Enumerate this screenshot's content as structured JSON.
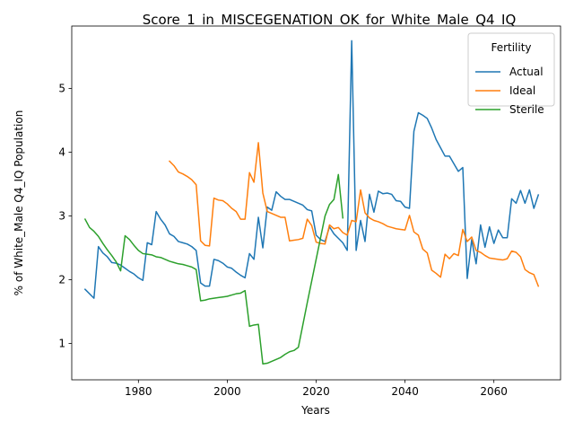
{
  "chart_data": {
    "type": "line",
    "title": "Score_1_in_MISCEGENATION_OK_for_White_Male_Q4_IQ",
    "xlabel": "Years",
    "ylabel": "% of White_Male Q4_IQ Population",
    "xlim": [
      1965,
      2075
    ],
    "ylim": [
      0.43,
      5.98
    ],
    "xticks": [
      1980,
      2000,
      2020,
      2040,
      2060
    ],
    "yticks": [
      1,
      2,
      3,
      4,
      5
    ],
    "grid": false,
    "legend": {
      "title": "Fertility",
      "placement": "top-right"
    },
    "series": [
      {
        "name": "Actual",
        "color": "#1f77b4",
        "x": [
          1968,
          1970,
          1971,
          1972,
          1973,
          1974,
          1975,
          1976,
          1977,
          1978,
          1979,
          1980,
          1981,
          1982,
          1983,
          1984,
          1985,
          1986,
          1987,
          1988,
          1989,
          1990,
          1991,
          1992,
          1993,
          1994,
          1995,
          1996,
          1997,
          1998,
          1999,
          2000,
          2001,
          2002,
          2003,
          2004,
          2005,
          2006,
          2007,
          2008,
          2009,
          2010,
          2011,
          2012,
          2013,
          2014,
          2015,
          2016,
          2017,
          2018,
          2019,
          2020,
          2021,
          2022,
          2023,
          2024,
          2025,
          2026,
          2027,
          2028,
          2029,
          2030,
          2031,
          2032,
          2033,
          2034,
          2035,
          2036,
          2037,
          2038,
          2039,
          2040,
          2041,
          2042,
          2043,
          2044,
          2045,
          2046,
          2047,
          2048,
          2049,
          2050,
          2051,
          2052,
          2053,
          2054,
          2055,
          2056,
          2057,
          2058,
          2059,
          2060,
          2061,
          2062,
          2063,
          2064,
          2065,
          2066,
          2067,
          2068,
          2069,
          2070
        ],
        "y": [
          1.85,
          1.71,
          2.52,
          2.42,
          2.36,
          2.27,
          2.26,
          2.23,
          2.18,
          2.13,
          2.09,
          2.03,
          1.99,
          2.58,
          2.55,
          3.07,
          2.95,
          2.86,
          2.72,
          2.68,
          2.6,
          2.58,
          2.56,
          2.52,
          2.46,
          1.95,
          1.9,
          1.9,
          2.32,
          2.3,
          2.26,
          2.2,
          2.18,
          2.12,
          2.07,
          2.03,
          2.41,
          2.32,
          2.98,
          2.5,
          3.14,
          3.09,
          3.38,
          3.31,
          3.26,
          3.26,
          3.23,
          3.2,
          3.17,
          3.1,
          3.08,
          2.7,
          2.63,
          2.6,
          2.83,
          2.72,
          2.65,
          2.58,
          2.46,
          5.75,
          2.46,
          2.93,
          2.6,
          3.34,
          3.06,
          3.39,
          3.35,
          3.36,
          3.34,
          3.24,
          3.23,
          3.14,
          3.12,
          4.33,
          4.62,
          4.58,
          4.53,
          4.38,
          4.2,
          4.07,
          3.94,
          3.94,
          3.82,
          3.7,
          3.76,
          2.02,
          2.63,
          2.25,
          2.86,
          2.51,
          2.83,
          2.57,
          2.78,
          2.66,
          2.66,
          3.27,
          3.2,
          3.4,
          3.2,
          3.41,
          3.12,
          3.33
        ]
      },
      {
        "name": "Ideal",
        "color": "#ff7f0e",
        "x": [
          1987,
          1988,
          1989,
          1990,
          1991,
          1992,
          1993,
          1994,
          1995,
          1996,
          1997,
          1998,
          1999,
          2000,
          2001,
          2002,
          2003,
          2004,
          2005,
          2006,
          2007,
          2008,
          2009,
          2010,
          2011,
          2012,
          2013,
          2014,
          2015,
          2016,
          2017,
          2018,
          2019,
          2020,
          2021,
          2022,
          2023,
          2024,
          2025,
          2026,
          2027,
          2028,
          2029,
          2030,
          2031,
          2032,
          2033,
          2034,
          2035,
          2036,
          2037,
          2038,
          2039,
          2040,
          2041,
          2042,
          2043,
          2044,
          2045,
          2046,
          2047,
          2048,
          2049,
          2050,
          2051,
          2052,
          2053,
          2054,
          2055,
          2056,
          2057,
          2058,
          2059,
          2060,
          2061,
          2062,
          2063,
          2064,
          2065,
          2066,
          2067,
          2068,
          2069,
          2070
        ],
        "y": [
          3.86,
          3.79,
          3.69,
          3.66,
          3.62,
          3.57,
          3.49,
          2.61,
          2.54,
          2.53,
          3.28,
          3.25,
          3.24,
          3.19,
          3.12,
          3.07,
          2.95,
          2.95,
          3.68,
          3.53,
          4.15,
          3.36,
          3.07,
          3.04,
          3.01,
          2.98,
          2.98,
          2.61,
          2.62,
          2.63,
          2.65,
          2.95,
          2.85,
          2.59,
          2.57,
          2.56,
          2.86,
          2.8,
          2.82,
          2.74,
          2.7,
          2.93,
          2.91,
          3.41,
          3.05,
          2.97,
          2.93,
          2.91,
          2.88,
          2.84,
          2.82,
          2.8,
          2.79,
          2.78,
          3.01,
          2.75,
          2.7,
          2.48,
          2.42,
          2.15,
          2.1,
          2.04,
          2.4,
          2.33,
          2.41,
          2.38,
          2.79,
          2.6,
          2.67,
          2.46,
          2.43,
          2.38,
          2.34,
          2.33,
          2.32,
          2.31,
          2.33,
          2.45,
          2.43,
          2.36,
          2.16,
          2.11,
          2.08,
          1.9
        ]
      },
      {
        "name": "Sterile",
        "color": "#2ca02c",
        "x": [
          1968,
          1969,
          1970,
          1971,
          1972,
          1973,
          1974,
          1975,
          1976,
          1977,
          1978,
          1979,
          1980,
          1981,
          1982,
          1983,
          1984,
          1985,
          1986,
          1987,
          1988,
          1989,
          1990,
          1991,
          1992,
          1993,
          1994,
          1995,
          1996,
          1997,
          1998,
          1999,
          2000,
          2001,
          2002,
          2003,
          2004,
          2005,
          2006,
          2007,
          2008,
          2009,
          2010,
          2011,
          2012,
          2013,
          2014,
          2015,
          2016,
          2017,
          2018,
          2019,
          2020,
          2021,
          2022,
          2023,
          2024,
          2025,
          2026
        ],
        "y": [
          2.95,
          2.82,
          2.76,
          2.68,
          2.57,
          2.47,
          2.38,
          2.28,
          2.14,
          2.69,
          2.63,
          2.54,
          2.46,
          2.41,
          2.4,
          2.39,
          2.36,
          2.35,
          2.32,
          2.29,
          2.27,
          2.25,
          2.24,
          2.22,
          2.2,
          2.16,
          1.67,
          1.68,
          1.7,
          1.71,
          1.72,
          1.73,
          1.74,
          1.76,
          1.78,
          1.79,
          1.83,
          1.27,
          1.29,
          1.3,
          0.68,
          0.69,
          0.72,
          0.75,
          0.78,
          0.83,
          0.87,
          0.89,
          0.94,
          1.29,
          1.64,
          1.98,
          2.32,
          2.66,
          3.0,
          3.18,
          3.26,
          3.65,
          2.97
        ]
      }
    ]
  }
}
